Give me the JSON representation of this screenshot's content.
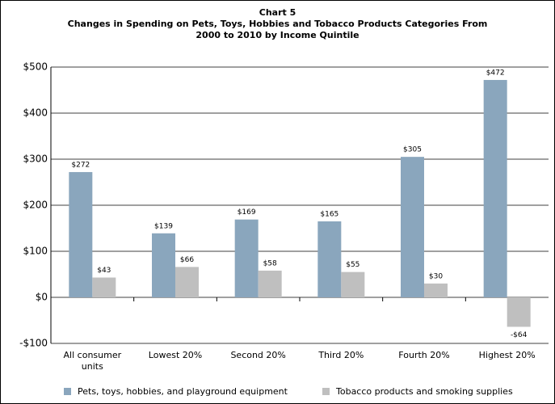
{
  "chart_data": {
    "type": "bar",
    "title": "Chart 5",
    "subtitle": "Changes in Spending on Pets, Toys, Hobbies and Tobacco Products Categories From 2000 to 2010 by Income Quintile",
    "categories": [
      "All consumer units",
      "Lowest 20%",
      "Second 20%",
      "Third 20%",
      "Fourth 20%",
      "Highest 20%"
    ],
    "series": [
      {
        "name": "Pets, toys, hobbies, and playground equipment",
        "color": "#8aa6bd",
        "values": [
          272,
          139,
          169,
          165,
          305,
          472
        ],
        "value_labels": [
          "$272",
          "$139",
          "$169",
          "$165",
          "$305",
          "$472"
        ]
      },
      {
        "name": "Tobacco products and smoking supplies",
        "color": "#bfbfbf",
        "values": [
          43,
          66,
          58,
          55,
          30,
          -64
        ],
        "value_labels": [
          "$43",
          "$66",
          "$58",
          "$55",
          "$30",
          "-$64"
        ]
      }
    ],
    "ylim": [
      -100,
      500
    ],
    "yticks": [
      {
        "value": -100,
        "label": "-$100"
      },
      {
        "value": 0,
        "label": "$0"
      },
      {
        "value": 100,
        "label": "$100"
      },
      {
        "value": 200,
        "label": "$200"
      },
      {
        "value": 300,
        "label": "$300"
      },
      {
        "value": 400,
        "label": "$400"
      },
      {
        "value": 500,
        "label": "$500"
      }
    ],
    "grid": true,
    "legend": "bottom"
  }
}
